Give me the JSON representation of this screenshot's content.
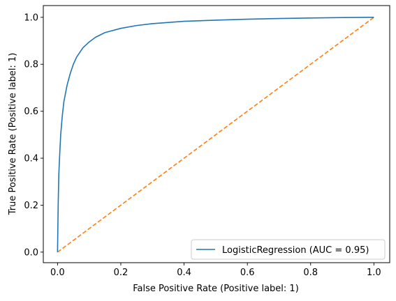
{
  "chart_data": {
    "type": "line",
    "title": "",
    "xlabel": "False Positive Rate (Positive label: 1)",
    "ylabel": "True Positive Rate (Positive label: 1)",
    "xlim": [
      -0.045,
      1.05
    ],
    "ylim": [
      -0.045,
      1.05
    ],
    "xticks": [
      0.0,
      0.2,
      0.4,
      0.6,
      0.8,
      1.0
    ],
    "yticks": [
      0.0,
      0.2,
      0.4,
      0.6,
      0.8,
      1.0
    ],
    "xtick_labels": [
      "0.0",
      "0.2",
      "0.4",
      "0.6",
      "0.8",
      "1.0"
    ],
    "ytick_labels": [
      "0.0",
      "0.2",
      "0.4",
      "0.6",
      "0.8",
      "1.0"
    ],
    "grid": false,
    "legend_position": "lower-right",
    "series": [
      {
        "name": "LogisticRegression (AUC = 0.95)",
        "color": "#1f77b4",
        "style": "solid",
        "x": [
          0.0,
          0.002,
          0.004,
          0.007,
          0.01,
          0.015,
          0.02,
          0.03,
          0.04,
          0.05,
          0.06,
          0.08,
          0.1,
          0.12,
          0.15,
          0.2,
          0.25,
          0.3,
          0.4,
          0.5,
          0.6,
          0.7,
          0.8,
          0.9,
          1.0
        ],
        "y": [
          0.0,
          0.2,
          0.33,
          0.42,
          0.5,
          0.58,
          0.64,
          0.71,
          0.76,
          0.8,
          0.83,
          0.87,
          0.895,
          0.915,
          0.935,
          0.953,
          0.965,
          0.973,
          0.983,
          0.988,
          0.992,
          0.995,
          0.997,
          0.999,
          1.0
        ]
      },
      {
        "name": "",
        "color": "#ff7f0e",
        "style": "dashed",
        "x": [
          0.0,
          1.0
        ],
        "y": [
          0.0,
          1.0
        ]
      }
    ]
  }
}
